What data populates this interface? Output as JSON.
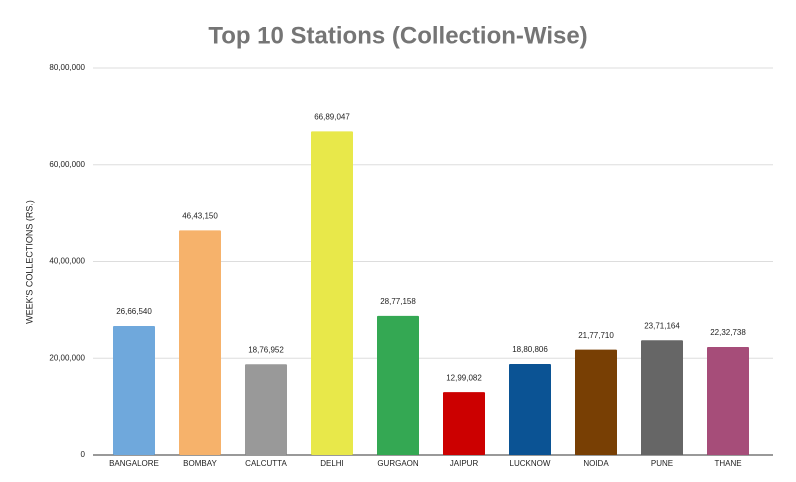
{
  "chart_data": {
    "type": "bar",
    "title": "Top 10 Stations (Collection-Wise)",
    "y_label": "WEEK'S COLLECTIONS (RS.)",
    "categories": [
      "BANGALORE",
      "BOMBAY",
      "CALCUTTA",
      "DELHI",
      "GURGAON",
      "JAIPUR",
      "LUCKNOW",
      "NOIDA",
      "PUNE",
      "THANE"
    ],
    "values": [
      2666540,
      4643150,
      1876952,
      6689047,
      2877158,
      1299082,
      1880806,
      2177710,
      2371164,
      2232738
    ],
    "value_labels": [
      "26,66,540",
      "46,43,150",
      "18,76,952",
      "66,89,047",
      "28,77,158",
      "12,99,082",
      "18,80,806",
      "21,77,710",
      "23,71,164",
      "22,32,738"
    ],
    "colors": [
      "#6fa8dc",
      "#f6b26b",
      "#999999",
      "#e8e84a",
      "#34a853",
      "#cc0000",
      "#0b5394",
      "#783f04",
      "#666666",
      "#a64d79"
    ],
    "ylim": [
      0,
      8000000
    ],
    "yticks": [
      0,
      {
        "value": 2000000,
        "label": "20,00,000"
      },
      {
        "value": 4000000,
        "label": "40,00,000"
      },
      {
        "value": 6000000,
        "label": "60,00,000"
      },
      {
        "value": 8000000,
        "label": "80,00,000"
      }
    ],
    "grid": true
  }
}
